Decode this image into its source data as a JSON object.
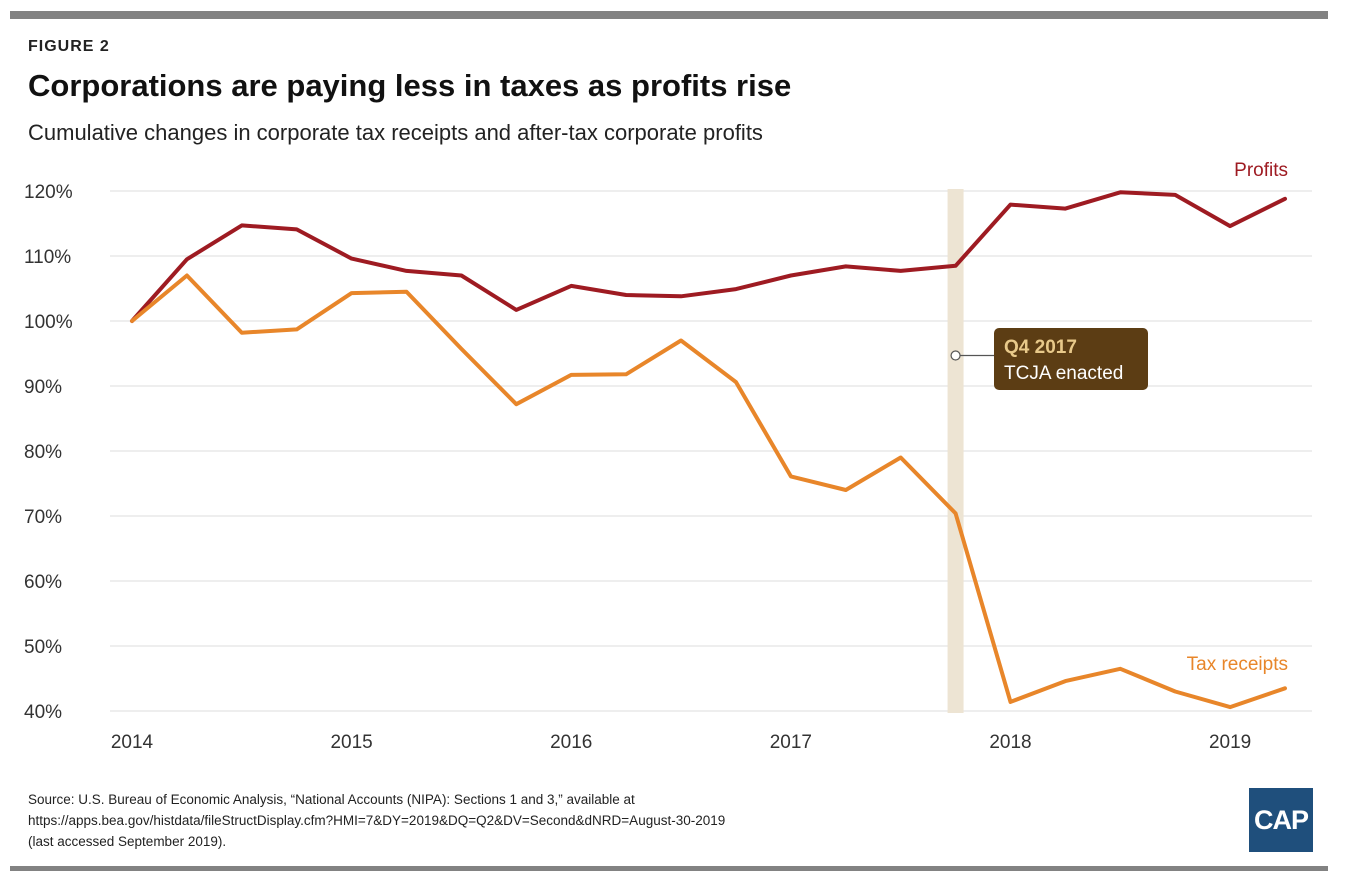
{
  "figure_label": "FIGURE 2",
  "title": "Corporations are paying less in taxes as profits rise",
  "subtitle": "Cumulative changes in corporate tax receipts and after-tax corporate profits",
  "source_lines": [
    "Source: U.S. Bureau of Economic Analysis, “National Accounts (NIPA): Sections 1 and 3,” available at",
    "https://apps.bea.gov/histdata/fileStructDisplay.cfm?HMI=7&DY=2019&DQ=Q2&DV=Second&dNRD=August-30-2019",
    "(last accessed September 2019)."
  ],
  "logo_text": "CAP",
  "colors": {
    "profits": "#9e1b22",
    "tax_receipts": "#e8862a",
    "annotation_bg": "#5c3d14",
    "annotation_title": "#e8c98a",
    "highlight_band": "#ede4d3",
    "grid": "#e3e3e3",
    "rule": "#828282",
    "logo_bg": "#1f4f7c"
  },
  "chart_data": {
    "type": "line",
    "x": [
      2014.0,
      2014.25,
      2014.5,
      2014.75,
      2015.0,
      2015.25,
      2015.5,
      2015.75,
      2016.0,
      2016.25,
      2016.5,
      2016.75,
      2017.0,
      2017.25,
      2017.5,
      2017.75,
      2018.0,
      2018.25,
      2018.5,
      2018.75,
      2019.0,
      2019.25
    ],
    "series": [
      {
        "name": "Profits",
        "color": "#9e1b22",
        "values": [
          100,
          109.5,
          114.7,
          114.1,
          109.6,
          107.7,
          107.0,
          101.7,
          105.4,
          104.0,
          103.8,
          104.9,
          107.0,
          108.4,
          107.7,
          108.5,
          117.9,
          117.3,
          119.8,
          119.4,
          114.6,
          118.8
        ]
      },
      {
        "name": "Tax receipts",
        "color": "#e8862a",
        "values": [
          100,
          107.0,
          98.2,
          98.7,
          104.3,
          104.5,
          95.7,
          87.2,
          91.7,
          91.8,
          97.0,
          90.6,
          76.1,
          74.0,
          79.0,
          70.4,
          41.4,
          44.6,
          46.5,
          43.0,
          40.6,
          43.5
        ]
      }
    ],
    "xticks": [
      2014,
      2015,
      2016,
      2017,
      2018,
      2019
    ],
    "xtick_labels": [
      "2014",
      "2015",
      "2016",
      "2017",
      "2018",
      "2019"
    ],
    "yticks": [
      40,
      50,
      60,
      70,
      80,
      90,
      100,
      110,
      120
    ],
    "ytick_labels": [
      "40%",
      "50%",
      "60%",
      "70%",
      "80%",
      "90%",
      "100%",
      "110%",
      "120%"
    ],
    "xlim": [
      2014.0,
      2019.25
    ],
    "ylim": [
      40,
      120
    ],
    "grid": true,
    "highlight": {
      "x": 2017.75
    },
    "annotation": {
      "x": 2017.75,
      "y": 95,
      "title": "Q4 2017",
      "text": "TCJA enacted"
    }
  }
}
